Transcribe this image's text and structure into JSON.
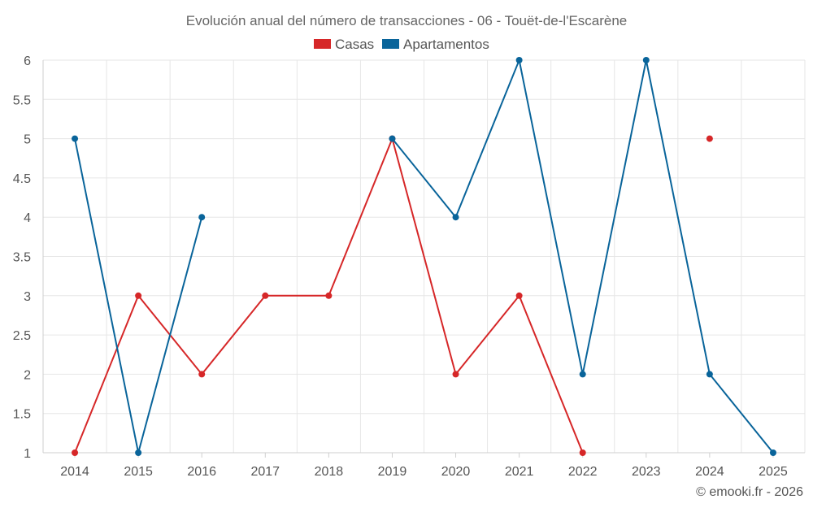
{
  "chart_data": {
    "type": "line",
    "title": "Evolución anual del número de transacciones - 06 - Touët-de-l'Escarène",
    "xlabel": "",
    "ylabel": "",
    "categories": [
      "2014",
      "2015",
      "2016",
      "2017",
      "2018",
      "2019",
      "2020",
      "2021",
      "2022",
      "2023",
      "2024",
      "2025"
    ],
    "ylim": [
      1,
      6
    ],
    "yticks": [
      "1",
      "1.5",
      "2",
      "2.5",
      "3",
      "3.5",
      "4",
      "4.5",
      "5",
      "5.5",
      "6"
    ],
    "grid": true,
    "legend_position": "top-center",
    "series": [
      {
        "name": "Casas",
        "color": "#d62728",
        "values": [
          1,
          3,
          2,
          3,
          3,
          5,
          2,
          3,
          1,
          null,
          5,
          null
        ]
      },
      {
        "name": "Apartamentos",
        "color": "#09649a",
        "values": [
          5,
          1,
          4,
          null,
          null,
          5,
          4,
          6,
          2,
          6,
          2,
          1
        ]
      }
    ]
  },
  "credit": "© emooki.fr - 2026"
}
